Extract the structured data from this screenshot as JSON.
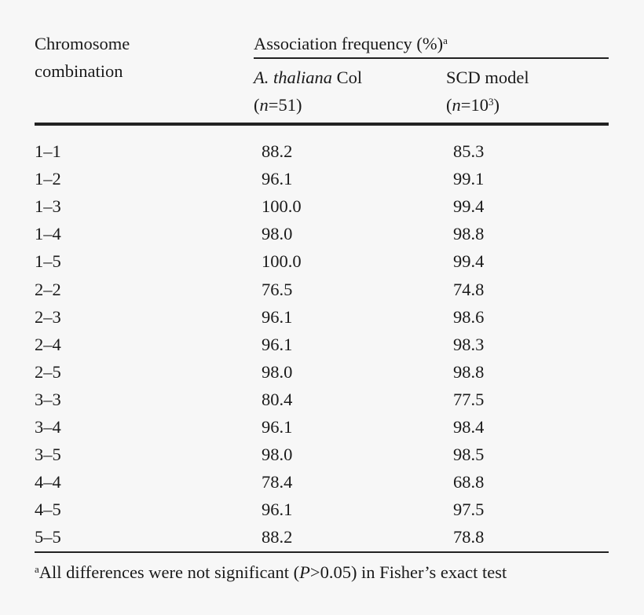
{
  "header": {
    "col1_line1": "Chromosome",
    "col1_line2": "combination",
    "group": "Association frequency (%)",
    "group_sup": "a",
    "col2_italic": "A. thaliana",
    "col2_rest": " Col",
    "col2_n": "51",
    "col3_title": "SCD model",
    "col3_n_base": "10",
    "col3_n_exp": "3"
  },
  "rows": [
    [
      "1–1",
      "88.2",
      "85.3"
    ],
    [
      "1–2",
      "96.1",
      "99.1"
    ],
    [
      "1–3",
      "100.0",
      "99.4"
    ],
    [
      "1–4",
      "98.0",
      "98.8"
    ],
    [
      "1–5",
      "100.0",
      "99.4"
    ],
    [
      "2–2",
      "76.5",
      "74.8"
    ],
    [
      "2–3",
      "96.1",
      "98.6"
    ],
    [
      "2–4",
      "96.1",
      "98.3"
    ],
    [
      "2–5",
      "98.0",
      "98.8"
    ],
    [
      "3–3",
      "80.4",
      "77.5"
    ],
    [
      "3–4",
      "96.1",
      "98.4"
    ],
    [
      "3–5",
      "98.0",
      "98.5"
    ],
    [
      "4–4",
      "78.4",
      "68.8"
    ],
    [
      "4–5",
      "96.1",
      "97.5"
    ],
    [
      "5–5",
      "88.2",
      "78.8"
    ]
  ],
  "footnote": {
    "sup": "a",
    "pre": "All differences were not significant (",
    "p": "P",
    "post": ">0.05) in Fisher’s exact test"
  }
}
